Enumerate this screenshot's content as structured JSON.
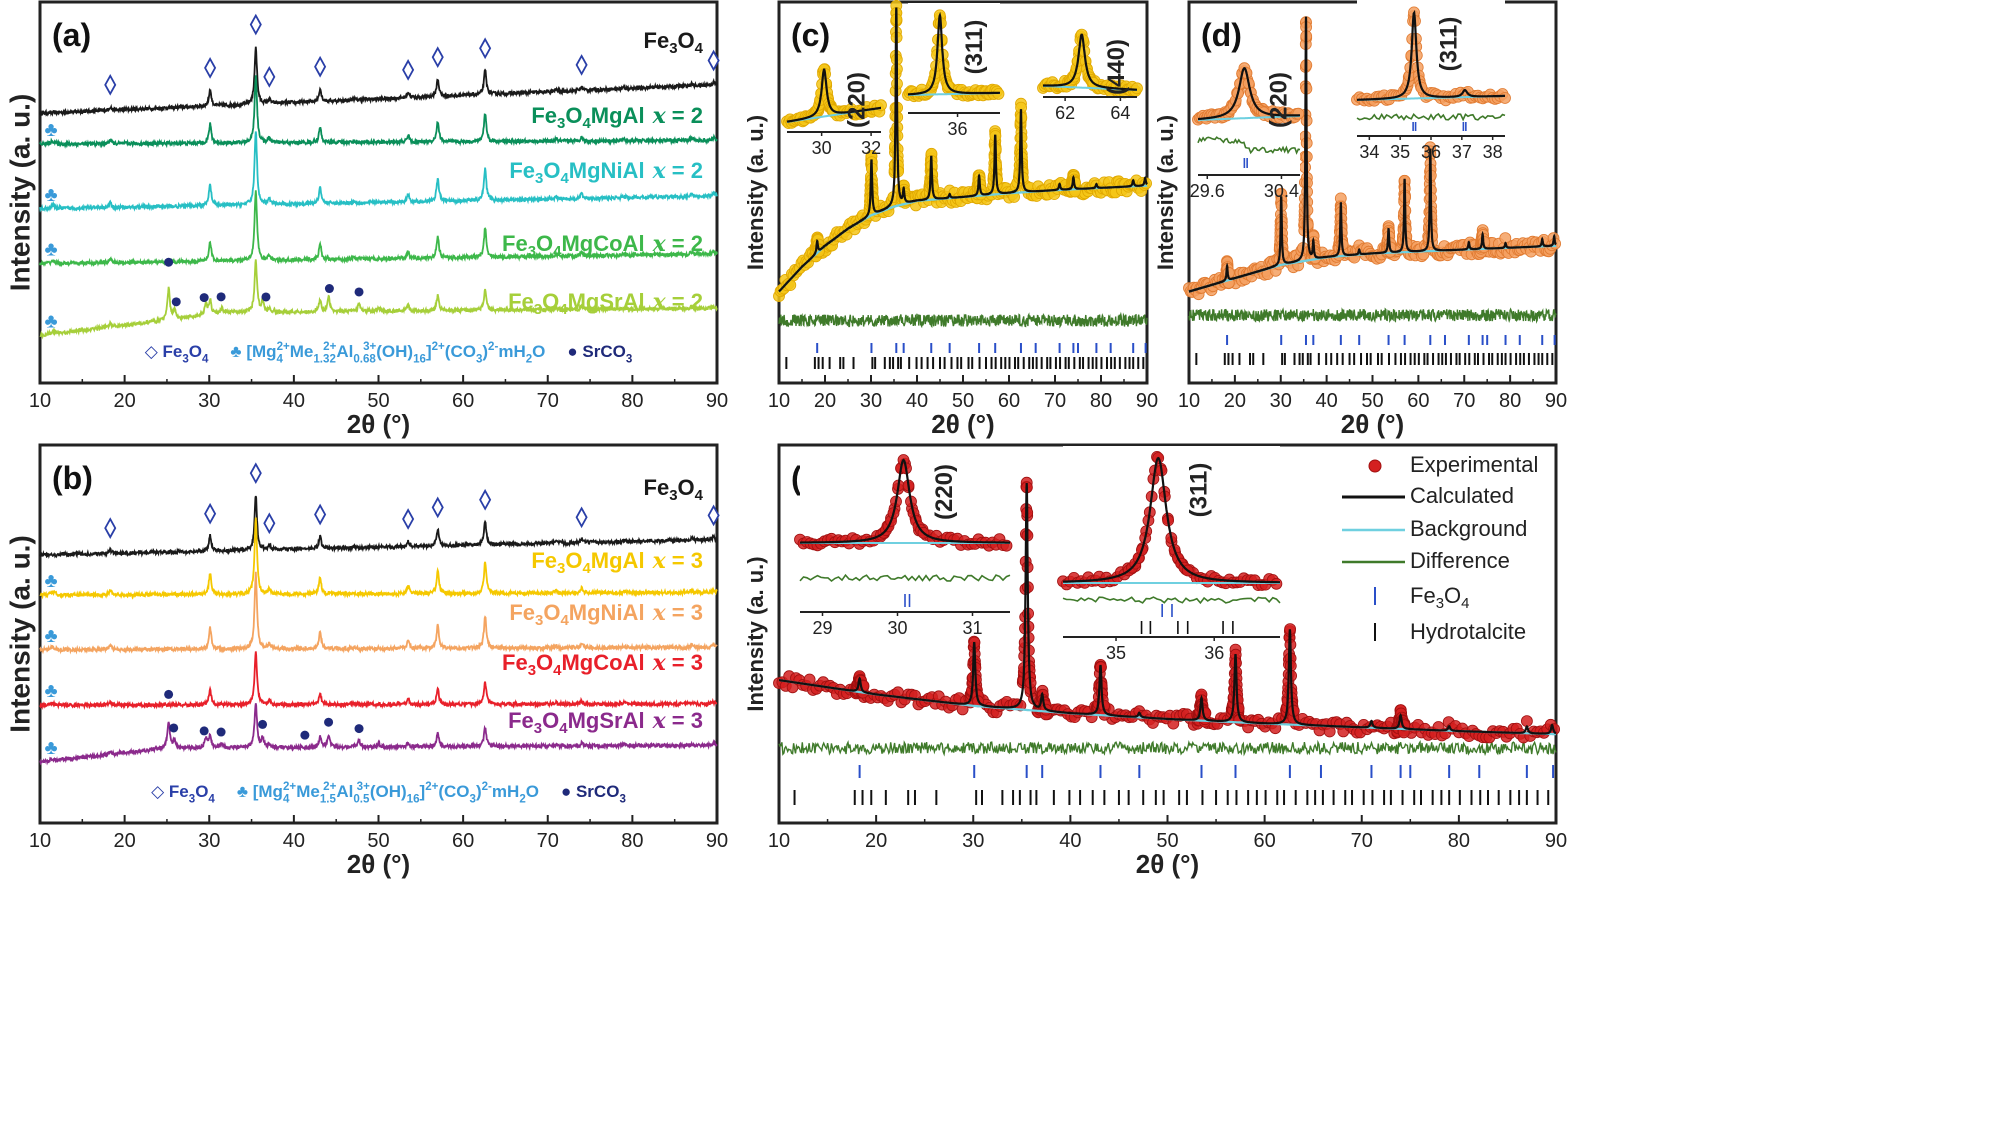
{
  "fe3o4_reflections": [
    [
      18.3,
      6
    ],
    [
      30.1,
      28
    ],
    [
      35.5,
      100
    ],
    [
      37.1,
      7
    ],
    [
      43.1,
      22
    ],
    [
      47.1,
      2
    ],
    [
      53.5,
      10
    ],
    [
      57.0,
      30
    ],
    [
      62.6,
      42
    ],
    [
      71.0,
      3
    ],
    [
      74.0,
      6
    ],
    [
      79.0,
      2
    ],
    [
      87.0,
      3
    ],
    [
      89.6,
      4
    ]
  ],
  "srco3_reflections": [
    [
      25.2,
      60
    ],
    [
      25.9,
      18
    ],
    [
      29.6,
      22
    ],
    [
      31.5,
      10
    ],
    [
      36.3,
      20
    ],
    [
      44.1,
      28
    ],
    [
      47.7,
      14
    ],
    [
      50.0,
      8
    ]
  ],
  "hydrotalcite_reflections": [
    [
      11.5,
      4
    ]
  ],
  "fe3o4_tick_positions": [
    18.3,
    30.1,
    35.5,
    37.1,
    43.1,
    47.1,
    53.5,
    57.0,
    62.6,
    65.8,
    71.0,
    74.0,
    75.0,
    79.0,
    82.1,
    87.0,
    89.7
  ],
  "hydrotalcite_tick_positions": [
    11.6,
    17.8,
    18.6,
    19.5,
    21.0,
    23.3,
    24.0,
    26.2,
    30.3,
    30.9,
    33.0,
    34.1,
    34.8,
    35.9,
    36.5,
    38.3,
    39.9,
    41.0,
    42.3,
    43.5,
    45.0,
    46.0,
    47.5,
    48.8,
    49.6,
    51.2,
    52.0,
    53.6,
    55.0,
    56.2,
    57.1,
    58.3,
    59.2,
    60.1,
    61.3,
    62.0,
    63.2,
    64.4,
    65.2,
    66.0,
    67.1,
    68.3,
    69.0,
    70.2,
    71.1,
    72.3,
    73.0,
    74.2,
    75.4,
    76.1,
    77.3,
    78.2,
    79.0,
    80.1,
    81.3,
    82.2,
    83.0,
    84.1,
    85.3,
    86.2,
    87.0,
    88.1,
    89.2
  ],
  "colors": {
    "frame": "#222222",
    "diamond": "#2a3fa8",
    "club": "#3a9ad9",
    "srco3_dot": "#1f2a7a",
    "calculated": "#111111",
    "background": "#6fd0e0",
    "difference": "#3f7a2a",
    "fe3o4_tick": "#2a4fc8",
    "hydrotalcite_tick": "#111111"
  },
  "chart_data": [
    {
      "type": "line",
      "panel_label": "(a)",
      "xlabel": "2θ (°)",
      "ylabel": "Intensity (a. u.)",
      "xlim": [
        10,
        90
      ],
      "xticks": [
        10,
        20,
        30,
        40,
        50,
        60,
        70,
        80,
        90
      ],
      "series": [
        {
          "name": "Fe_{3}O_{4}",
          "x_value": "",
          "color": "#1a1a1a",
          "baseline": [
            [
              10,
              70.8
            ],
            [
              90,
              78.3
            ]
          ],
          "height": 15.1,
          "hydrotalcite": false,
          "srco3": false
        },
        {
          "name": "Fe_{3}O_{4}MgAl",
          "x_value": "x = 2",
          "color": "#0a8f5a",
          "baseline": [
            [
              10,
              62.7
            ],
            [
              90,
              63.7
            ]
          ],
          "height": 17.8,
          "hydrotalcite": true,
          "srco3": false
        },
        {
          "name": "Fe_{3}O_{4}MgNiAl",
          "x_value": "x = 2",
          "color": "#27bfc4",
          "baseline": [
            [
              10,
              45.7
            ],
            [
              90,
              49.1
            ]
          ],
          "height": 19.6,
          "hydrotalcite": true,
          "srco3": false
        },
        {
          "name": "Fe_{3}O_{4}MgCoAl",
          "x_value": "x = 2",
          "color": "#3db84a",
          "baseline": [
            [
              10,
              31.3
            ],
            [
              90,
              33.9
            ]
          ],
          "height": 18.3,
          "hydrotalcite": true,
          "srco3": false
        },
        {
          "name": "Fe_{3}O_{4}MgSrAl",
          "x_value": "x = 2",
          "color": "#a6cf3a",
          "baseline": [
            [
              10,
              12.5
            ],
            [
              25,
              16.5
            ],
            [
              32,
              18.5
            ],
            [
              90,
              19.6
            ]
          ],
          "height": 13.6,
          "hydrotalcite": true,
          "srco3": true
        }
      ],
      "markers": {
        "diamond_positions": [
          18.3,
          30.1,
          35.5,
          37.1,
          43.1,
          53.5,
          57.0,
          62.6,
          74.0,
          89.6
        ],
        "club_position": 11.3,
        "dot_positions": [
          25.2,
          26.1,
          29.4,
          31.4,
          36.7,
          44.2,
          47.7
        ]
      },
      "legend": [
        {
          "symbol": "◇",
          "text": "Fe_{3}O_{4}",
          "color": "#2a3fa8"
        },
        {
          "symbol": "♣",
          "text": "[Mg_{4}^{2+}Me_{1.32}^{2+}Al_{0.68}^{3+}(OH)_{16}]^{2+}(CO_{3})^{2-}mH_{2}O",
          "color": "#3a9ad9"
        },
        {
          "symbol": "●",
          "text": "SrCO_{3}",
          "color": "#1f2a7a"
        }
      ]
    },
    {
      "type": "line",
      "panel_label": "(b)",
      "xlabel": "2θ (°)",
      "ylabel": "Intensity (a. u.)",
      "xlim": [
        10,
        90
      ],
      "xticks": [
        10,
        20,
        30,
        40,
        50,
        60,
        70,
        80,
        90
      ],
      "series": [
        {
          "name": "Fe_{3}O_{4}",
          "x_value": "",
          "color": "#1a1a1a",
          "baseline": [
            [
              10,
              70.9
            ],
            [
              90,
              75.0
            ]
          ],
          "height": 14.5,
          "hydrotalcite": false,
          "srco3": false
        },
        {
          "name": "Fe_{3}O_{4}MgAl",
          "x_value": "x = 3",
          "color": "#f5c800",
          "baseline": [
            [
              10,
              60.3
            ],
            [
              90,
              61.0
            ]
          ],
          "height": 20,
          "hydrotalcite": true,
          "srco3": false
        },
        {
          "name": "Fe_{3}O_{4}MgNiAl",
          "x_value": "x = 3",
          "color": "#f4a460",
          "baseline": [
            [
              10,
              45.8
            ],
            [
              90,
              46.5
            ]
          ],
          "height": 20,
          "hydrotalcite": true,
          "srco3": false
        },
        {
          "name": "Fe_{3}O_{4}MgCoAl",
          "x_value": "x = 3",
          "color": "#e8202a",
          "baseline": [
            [
              10,
              31.2
            ],
            [
              90,
              31.5
            ]
          ],
          "height": 14,
          "hydrotalcite": true,
          "srco3": false
        },
        {
          "name": "Fe_{3}O_{4}MgSrAl",
          "x_value": "x = 3",
          "color": "#8b2a8c",
          "baseline": [
            [
              10,
              16.1
            ],
            [
              25,
              19.8
            ],
            [
              90,
              20.6
            ]
          ],
          "height": 12,
          "hydrotalcite": true,
          "srco3": true
        }
      ],
      "markers": {
        "diamond_positions": [
          18.3,
          30.1,
          35.5,
          37.1,
          43.1,
          53.5,
          57.0,
          62.6,
          74.0,
          89.6
        ],
        "club_position": 11.3,
        "dot_positions": [
          25.2,
          25.8,
          29.4,
          31.4,
          36.3,
          41.3,
          44.1,
          47.7
        ]
      },
      "legend": [
        {
          "symbol": "◇",
          "text": "Fe_{3}O_{4}",
          "color": "#2a3fa8"
        },
        {
          "symbol": "♣",
          "text": "[Mg_{4}^{2+}Me_{1.5}^{2+}Al_{0.5}^{3+}(OH)_{16}]^{2+}(CO_{3})^{2-}mH_{2}O",
          "color": "#3a9ad9"
        },
        {
          "symbol": "●",
          "text": "SrCO_{3}",
          "color": "#1f2a7a"
        }
      ]
    },
    {
      "type": "scatter",
      "panel_label": "(c)",
      "xlabel": "2θ (°)",
      "ylabel": "Intensity (a. u.)",
      "xlim": [
        10,
        90
      ],
      "xticks": [
        10,
        20,
        30,
        40,
        50,
        60,
        70,
        80,
        90
      ],
      "observed_color": "#f5c518",
      "observed_edge": "#e0a800",
      "background": [
        [
          10,
          24
        ],
        [
          15,
          30.5
        ],
        [
          20,
          36
        ],
        [
          25,
          40.5
        ],
        [
          30,
          44
        ],
        [
          35,
          46.3
        ],
        [
          40,
          47.8
        ],
        [
          50,
          48.8
        ],
        [
          60,
          49.8
        ],
        [
          70,
          50.6
        ],
        [
          80,
          51.2
        ],
        [
          90,
          51.8
        ]
      ],
      "peak_scale": 52,
      "peak_width": 0.18,
      "difference_level": 16.4,
      "insets": [
        {
          "hkl": "(220)",
          "xlim": [
            28.6,
            32.4
          ],
          "xticks": [
            30,
            32
          ],
          "peak": 30.1,
          "width": 0.12
        },
        {
          "hkl": "(311)",
          "xlim": [
            34.6,
            37.2
          ],
          "xticks": [
            36
          ],
          "peak": 35.5,
          "width": 0.08
        },
        {
          "hkl": "(440)",
          "xlim": [
            61.2,
            64.6
          ],
          "xticks": [
            62,
            64
          ],
          "peak": 62.6,
          "width": 0.14
        }
      ]
    },
    {
      "type": "scatter",
      "panel_label": "(d)",
      "xlabel": "2θ (°)",
      "ylabel": "Intensity (a. u.)",
      "xlim": [
        10,
        90
      ],
      "xticks": [
        10,
        20,
        30,
        40,
        50,
        60,
        70,
        80,
        90
      ],
      "observed_color": "#f4a060",
      "observed_edge": "#e07a30",
      "background": [
        [
          10,
          24
        ],
        [
          20,
          27.5
        ],
        [
          30,
          31
        ],
        [
          40,
          33
        ],
        [
          50,
          34
        ],
        [
          60,
          34.5
        ],
        [
          70,
          35
        ],
        [
          80,
          35.5
        ],
        [
          90,
          36
        ]
      ],
      "peak_scale": 64,
      "peak_width": 0.15,
      "difference_level": 17.8,
      "insets": [
        {
          "hkl": "(220)",
          "xlim": [
            29.5,
            30.6
          ],
          "xticks": [
            29.6,
            30.4
          ],
          "xtick_labels": [
            "29.6",
            "30.4"
          ],
          "peak": 30.0,
          "width": 0.07,
          "fe3o4_ticks": [
            30.0,
            30.03
          ]
        },
        {
          "hkl": "(311)",
          "xlim": [
            33.6,
            38.4
          ],
          "xticks": [
            34,
            35,
            36,
            37,
            38
          ],
          "peak": 35.45,
          "width": 0.09,
          "secondary_peak": 37.1,
          "fe3o4_ticks": [
            35.42,
            35.5,
            37.05,
            37.13
          ]
        }
      ]
    },
    {
      "type": "scatter",
      "panel_label": "(e)",
      "xlabel": "2θ (°)",
      "ylabel": "Intensity (a. u.)",
      "xlim": [
        10,
        90
      ],
      "xticks": [
        10,
        20,
        30,
        40,
        50,
        60,
        70,
        80,
        90
      ],
      "observed_color": "#d42020",
      "observed_edge": "#a01010",
      "background": [
        [
          10,
          37.8
        ],
        [
          20,
          34
        ],
        [
          30,
          31
        ],
        [
          40,
          29
        ],
        [
          50,
          27.5
        ],
        [
          60,
          26.3
        ],
        [
          70,
          25.3
        ],
        [
          80,
          24.3
        ],
        [
          90,
          23.5
        ]
      ],
      "peak_scale": 60,
      "peak_width": 0.13,
      "difference_level": 19.8,
      "insets": [
        {
          "hkl": "(220)",
          "xlim": [
            28.7,
            31.5
          ],
          "xticks": [
            29,
            30,
            31
          ],
          "peak": 30.08,
          "width": 0.1,
          "fe3o4_ticks": [
            30.1,
            30.16
          ]
        },
        {
          "hkl": "(311)",
          "xlim": [
            34.46,
            36.67
          ],
          "xticks": [
            35,
            36
          ],
          "peak": 35.43,
          "width": 0.1,
          "fe3o4_ticks": [
            35.47,
            35.57
          ],
          "hydrotalcite_ticks": [
            35.26,
            35.35,
            35.63,
            35.73,
            36.09,
            36.19
          ]
        }
      ],
      "legend": [
        {
          "label": "Experimental",
          "kind": "dot"
        },
        {
          "label": "Calculated",
          "kind": "calc-line"
        },
        {
          "label": "Background",
          "kind": "bg-line"
        },
        {
          "label": "Difference",
          "kind": "diff-line"
        },
        {
          "label": "Fe_{3}O_{4}",
          "kind": "fe-tick"
        },
        {
          "label": "Hydrotalcite",
          "kind": "ht-tick"
        }
      ]
    }
  ]
}
